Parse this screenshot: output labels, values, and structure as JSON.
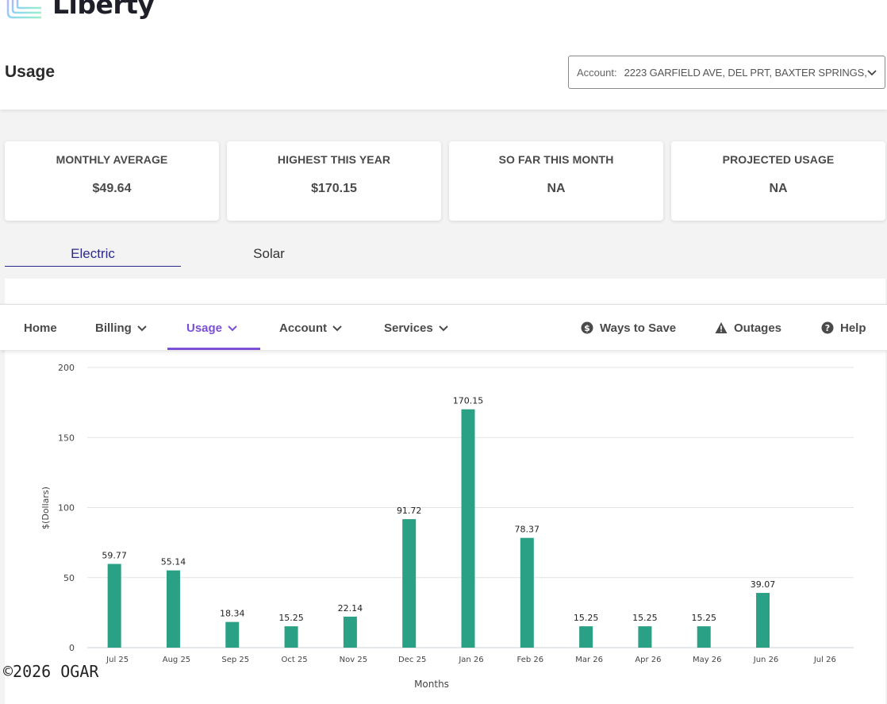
{
  "brand": {
    "name": "Liberty",
    "tm": "™"
  },
  "page": {
    "title": "Usage"
  },
  "account": {
    "label": "Account:",
    "value": "2223 GARFIELD AVE, DEL PRT, BAXTER SPRINGS,"
  },
  "cards": [
    {
      "title": "MONTHLY AVERAGE",
      "value": "$49.64"
    },
    {
      "title": "HIGHEST THIS YEAR",
      "value": "$170.15"
    },
    {
      "title": "SO FAR THIS MONTH",
      "value": "NA"
    },
    {
      "title": "PROJECTED USAGE",
      "value": "NA"
    }
  ],
  "tabs": {
    "electric": "Electric",
    "solar": "Solar"
  },
  "nav": {
    "home": "Home",
    "billing": "Billing",
    "usage": "Usage",
    "account": "Account",
    "services": "Services",
    "ways_to_save": "Ways to Save",
    "outages": "Outages",
    "help": "Help"
  },
  "colors": {
    "bar": "#2aa085",
    "accent": "#7b4fd6",
    "tab_active": "#2a2a8c"
  },
  "chart_data": {
    "type": "bar",
    "categories": [
      "Jul 25",
      "Aug 25",
      "Sep 25",
      "Oct 25",
      "Nov 25",
      "Dec 25",
      "Jan 26",
      "Feb 26",
      "Mar 26",
      "Apr 26",
      "May 26",
      "Jun 26",
      "Jul 26"
    ],
    "values": [
      59.77,
      55.14,
      18.34,
      15.25,
      22.14,
      91.72,
      170.15,
      78.37,
      15.25,
      15.25,
      15.25,
      39.07,
      null
    ],
    "value_labels": [
      "59.77",
      "55.14",
      "18.34",
      "15.25",
      "22.14",
      "91.72",
      "170.15",
      "78.37",
      "15.25",
      "15.25",
      "15.25",
      "39.07",
      ""
    ],
    "xlabel": "Months",
    "ylabel": "$(Dollars)",
    "ylim": [
      0,
      200
    ],
    "yticks": [
      "0",
      "50",
      "100",
      "150",
      "200"
    ],
    "grid": true
  },
  "footer": {
    "copyright": "©2026 OGAR"
  }
}
